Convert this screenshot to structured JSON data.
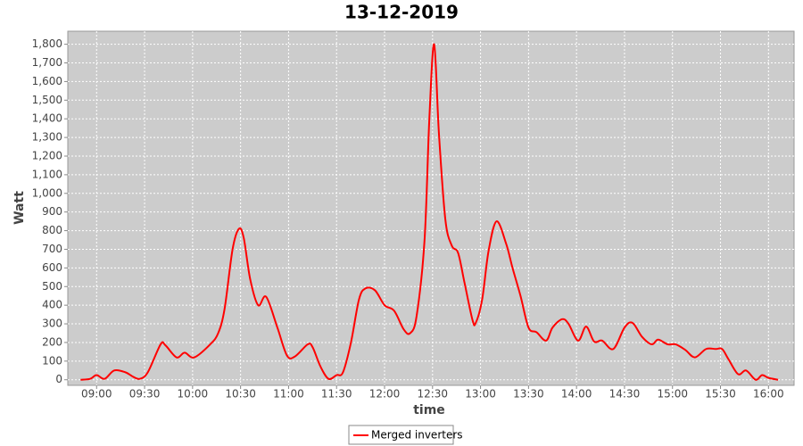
{
  "chart_data": {
    "type": "line",
    "title": "13-12-2019",
    "xlabel": "time",
    "ylabel": "Watt",
    "x": [
      "08:50",
      "08:56",
      "09:00",
      "09:05",
      "09:11",
      "09:18",
      "09:23",
      "09:27",
      "09:32",
      "09:40",
      "09:43",
      "09:50",
      "09:55",
      "10:01",
      "10:11",
      "10:16",
      "10:20",
      "10:25",
      "10:29",
      "10:32",
      "10:36",
      "10:41",
      "10:46",
      "10:53",
      "10:59",
      "11:04",
      "11:12",
      "11:15",
      "11:20",
      "11:25",
      "11:30",
      "11:34",
      "11:39",
      "11:44",
      "11:48",
      "11:54",
      "12:00",
      "12:06",
      "12:12",
      "12:16",
      "12:20",
      "12:25",
      "12:28",
      "12:31",
      "12:34",
      "12:38",
      "12:42",
      "12:46",
      "12:50",
      "12:55",
      "12:57",
      "13:01",
      "13:05",
      "13:10",
      "13:16",
      "13:20",
      "13:25",
      "13:30",
      "13:35",
      "13:41",
      "13:45",
      "13:51",
      "13:55",
      "14:01",
      "14:06",
      "14:11",
      "14:16",
      "14:23",
      "14:30",
      "14:35",
      "14:41",
      "14:47",
      "14:51",
      "14:57",
      "15:02",
      "15:08",
      "15:14",
      "15:21",
      "15:27",
      "15:31",
      "15:35",
      "15:41",
      "15:46",
      "15:52",
      "15:56",
      "16:00",
      "16:06"
    ],
    "series": [
      {
        "name": "Merged inverters",
        "color": "#ff0000",
        "values": [
          0,
          5,
          25,
          5,
          50,
          40,
          15,
          5,
          40,
          190,
          185,
          120,
          145,
          120,
          190,
          250,
          380,
          700,
          810,
          760,
          540,
          400,
          445,
          280,
          130,
          125,
          190,
          175,
          70,
          5,
          25,
          40,
          200,
          430,
          490,
          480,
          400,
          370,
          270,
          250,
          340,
          750,
          1400,
          1800,
          1320,
          860,
          720,
          680,
          520,
          320,
          305,
          430,
          690,
          850,
          730,
          600,
          450,
          280,
          255,
          210,
          280,
          325,
          300,
          210,
          285,
          205,
          210,
          165,
          280,
          305,
          230,
          190,
          215,
          190,
          190,
          160,
          120,
          165,
          165,
          165,
          110,
          30,
          50,
          0,
          25,
          10,
          0
        ]
      }
    ],
    "xlim": [
      "08:42",
      "16:16"
    ],
    "xticks": [
      "09:00",
      "09:30",
      "10:00",
      "10:30",
      "11:00",
      "11:30",
      "12:00",
      "12:30",
      "13:00",
      "13:30",
      "14:00",
      "14:30",
      "15:00",
      "15:30",
      "16:00"
    ],
    "ylim": [
      -30,
      1870
    ],
    "yticks": [
      0,
      100,
      200,
      300,
      400,
      500,
      600,
      700,
      800,
      900,
      {
        "value": 1000,
        "label": "1,000"
      },
      {
        "value": 1100,
        "label": "1,100"
      },
      {
        "value": 1200,
        "label": "1,200"
      },
      {
        "value": 1300,
        "label": "1,300"
      },
      {
        "value": 1400,
        "label": "1,400"
      },
      {
        "value": 1500,
        "label": "1,500"
      },
      {
        "value": 1600,
        "label": "1,600"
      },
      {
        "value": 1700,
        "label": "1,700"
      },
      {
        "value": 1800,
        "label": "1,800"
      }
    ],
    "grid": true,
    "legend": "bottom"
  }
}
